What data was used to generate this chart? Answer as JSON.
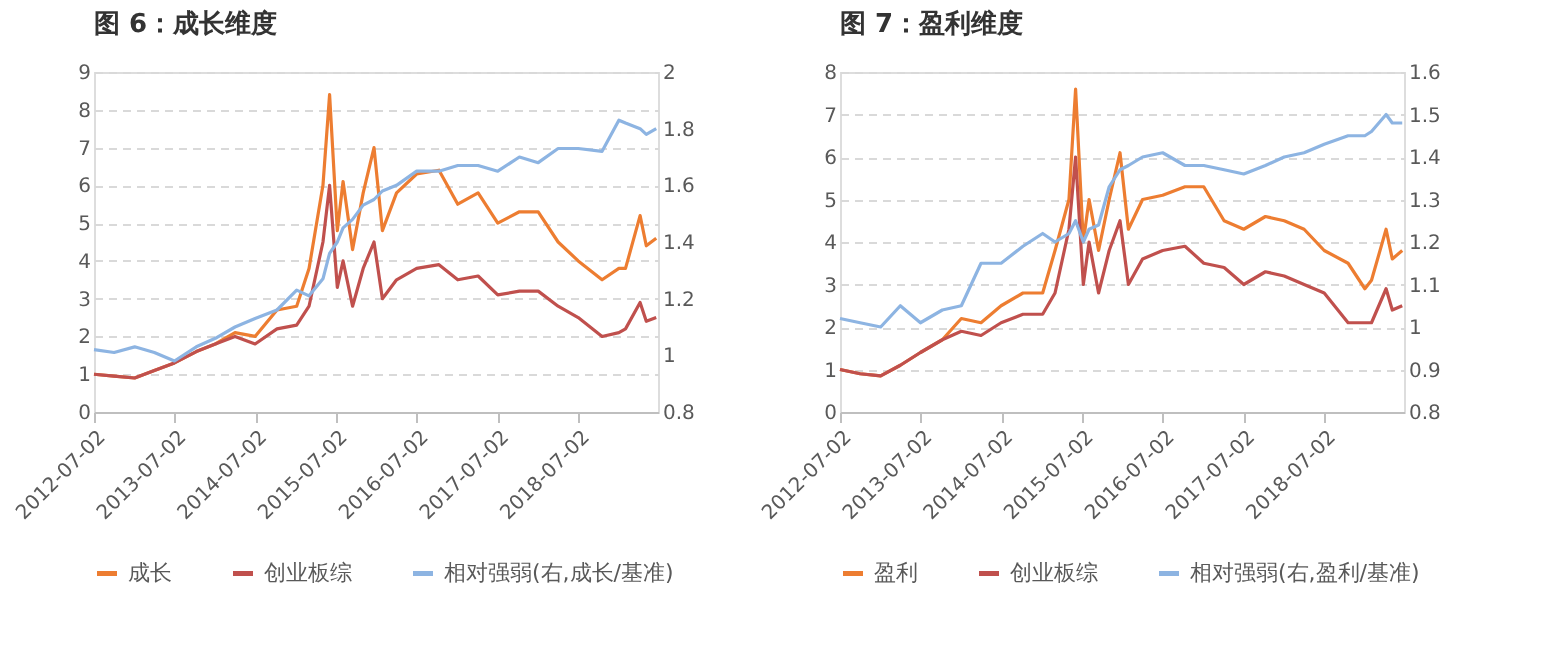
{
  "chart_data": [
    {
      "type": "line",
      "title": "图 6：成长维度",
      "x": [
        "2012-07-02",
        "2012-10-01",
        "2013-01-02",
        "2013-04-01",
        "2013-07-01",
        "2013-10-08",
        "2014-01-02",
        "2014-04-01",
        "2014-07-01",
        "2014-10-08",
        "2015-01-05",
        "2015-03-02",
        "2015-05-04",
        "2015-06-03",
        "2015-07-08",
        "2015-08-03",
        "2015-09-15",
        "2015-11-02",
        "2015-12-21",
        "2016-01-28",
        "2016-04-01",
        "2016-07-01",
        "2016-10-10",
        "2017-01-03",
        "2017-04-05",
        "2017-07-03",
        "2017-10-09",
        "2018-01-02",
        "2018-04-02",
        "2018-07-02",
        "2018-10-18",
        "2019-01-02",
        "2019-02-01",
        "2019-04-08",
        "2019-05-06",
        "2019-06-20"
      ],
      "xlim": [
        "2012-07-02",
        "2019-06-28"
      ],
      "xticks": [
        "2012-07-02",
        "2013-07-02",
        "2014-07-02",
        "2015-07-02",
        "2016-07-02",
        "2017-07-02",
        "2018-07-02"
      ],
      "ylim": [
        0,
        9
      ],
      "yticks": [
        0,
        1,
        2,
        3,
        4,
        5,
        6,
        7,
        8,
        9
      ],
      "y2lim": [
        0.8,
        2
      ],
      "y2ticks": [
        0.8,
        1,
        1.2,
        1.4,
        1.6,
        1.8,
        2
      ],
      "grid": "y",
      "legend": "bottom",
      "line_style": "solid",
      "marker": "none",
      "series": [
        {
          "name": "成长",
          "color": "#ed7d31",
          "values": [
            1.0,
            0.95,
            0.9,
            1.1,
            1.3,
            1.6,
            1.8,
            2.1,
            2.0,
            2.7,
            2.8,
            3.8,
            6.0,
            8.4,
            4.8,
            6.1,
            4.3,
            5.8,
            7.0,
            4.8,
            5.8,
            6.3,
            6.4,
            5.5,
            5.8,
            5.0,
            5.3,
            5.3,
            4.5,
            4.0,
            3.5,
            3.8,
            3.8,
            5.2,
            4.4,
            4.6
          ]
        },
        {
          "name": "创业板综",
          "color": "#c0504d",
          "values": [
            1.0,
            0.95,
            0.9,
            1.1,
            1.3,
            1.6,
            1.8,
            2.0,
            1.8,
            2.2,
            2.3,
            2.8,
            4.5,
            6.0,
            3.3,
            4.0,
            2.8,
            3.8,
            4.5,
            3.0,
            3.5,
            3.8,
            3.9,
            3.5,
            3.6,
            3.1,
            3.2,
            3.2,
            2.8,
            2.5,
            2.0,
            2.1,
            2.2,
            2.9,
            2.4,
            2.5
          ]
        },
        {
          "name": "相对强弱(右,成长/基准)",
          "color": "#8db4e2",
          "axis": "y2",
          "values": [
            1.02,
            1.01,
            1.03,
            1.01,
            0.98,
            1.03,
            1.06,
            1.1,
            1.13,
            1.16,
            1.23,
            1.21,
            1.27,
            1.36,
            1.4,
            1.45,
            1.48,
            1.53,
            1.55,
            1.58,
            1.6,
            1.65,
            1.65,
            1.67,
            1.67,
            1.65,
            1.7,
            1.68,
            1.73,
            1.73,
            1.72,
            1.83,
            1.82,
            1.8,
            1.78,
            1.8
          ]
        }
      ]
    },
    {
      "type": "line",
      "title": "图 7：盈利维度",
      "x": [
        "2012-07-02",
        "2012-10-01",
        "2013-01-02",
        "2013-04-01",
        "2013-07-01",
        "2013-10-08",
        "2014-01-02",
        "2014-04-01",
        "2014-07-01",
        "2014-10-08",
        "2015-01-05",
        "2015-03-02",
        "2015-05-04",
        "2015-06-03",
        "2015-07-08",
        "2015-08-03",
        "2015-09-15",
        "2015-11-02",
        "2015-12-21",
        "2016-01-28",
        "2016-04-01",
        "2016-07-01",
        "2016-10-10",
        "2017-01-03",
        "2017-04-05",
        "2017-07-03",
        "2017-10-09",
        "2018-01-02",
        "2018-04-02",
        "2018-07-02",
        "2018-10-18",
        "2019-01-02",
        "2019-02-01",
        "2019-04-08",
        "2019-05-06",
        "2019-06-20"
      ],
      "xlim": [
        "2012-07-02",
        "2019-06-28"
      ],
      "xticks": [
        "2012-07-02",
        "2013-07-02",
        "2014-07-02",
        "2015-07-02",
        "2016-07-02",
        "2017-07-02",
        "2018-07-02"
      ],
      "ylim": [
        0,
        8
      ],
      "yticks": [
        0,
        1,
        2,
        3,
        4,
        5,
        6,
        7,
        8
      ],
      "y2lim": [
        0.8,
        1.6
      ],
      "y2ticks": [
        0.8,
        0.9,
        1,
        1.1,
        1.2,
        1.3,
        1.4,
        1.5,
        1.6
      ],
      "grid": "y",
      "legend": "bottom",
      "line_style": "solid",
      "marker": "none",
      "series": [
        {
          "name": "盈利",
          "color": "#ed7d31",
          "values": [
            1.0,
            0.9,
            0.85,
            1.1,
            1.4,
            1.7,
            2.2,
            2.1,
            2.5,
            2.8,
            2.8,
            3.8,
            5.0,
            7.6,
            4.0,
            5.0,
            3.8,
            5.0,
            6.1,
            4.3,
            5.0,
            5.1,
            5.3,
            5.3,
            4.5,
            4.3,
            4.6,
            4.5,
            4.3,
            3.8,
            3.5,
            2.9,
            3.1,
            4.3,
            3.6,
            3.8
          ]
        },
        {
          "name": "创业板综",
          "color": "#c0504d",
          "values": [
            1.0,
            0.9,
            0.85,
            1.1,
            1.4,
            1.7,
            1.9,
            1.8,
            2.1,
            2.3,
            2.3,
            2.8,
            4.3,
            6.0,
            3.0,
            4.0,
            2.8,
            3.8,
            4.5,
            3.0,
            3.6,
            3.8,
            3.9,
            3.5,
            3.4,
            3.0,
            3.3,
            3.2,
            3.0,
            2.8,
            2.1,
            2.1,
            2.1,
            2.9,
            2.4,
            2.5
          ]
        },
        {
          "name": "相对强弱(右,盈利/基准)",
          "color": "#8db4e2",
          "axis": "y2",
          "values": [
            1.02,
            1.01,
            1.0,
            1.05,
            1.01,
            1.04,
            1.05,
            1.15,
            1.15,
            1.19,
            1.22,
            1.2,
            1.22,
            1.25,
            1.2,
            1.23,
            1.24,
            1.33,
            1.37,
            1.38,
            1.4,
            1.41,
            1.38,
            1.38,
            1.37,
            1.36,
            1.38,
            1.4,
            1.41,
            1.43,
            1.45,
            1.45,
            1.46,
            1.5,
            1.48,
            1.48
          ]
        }
      ]
    }
  ]
}
